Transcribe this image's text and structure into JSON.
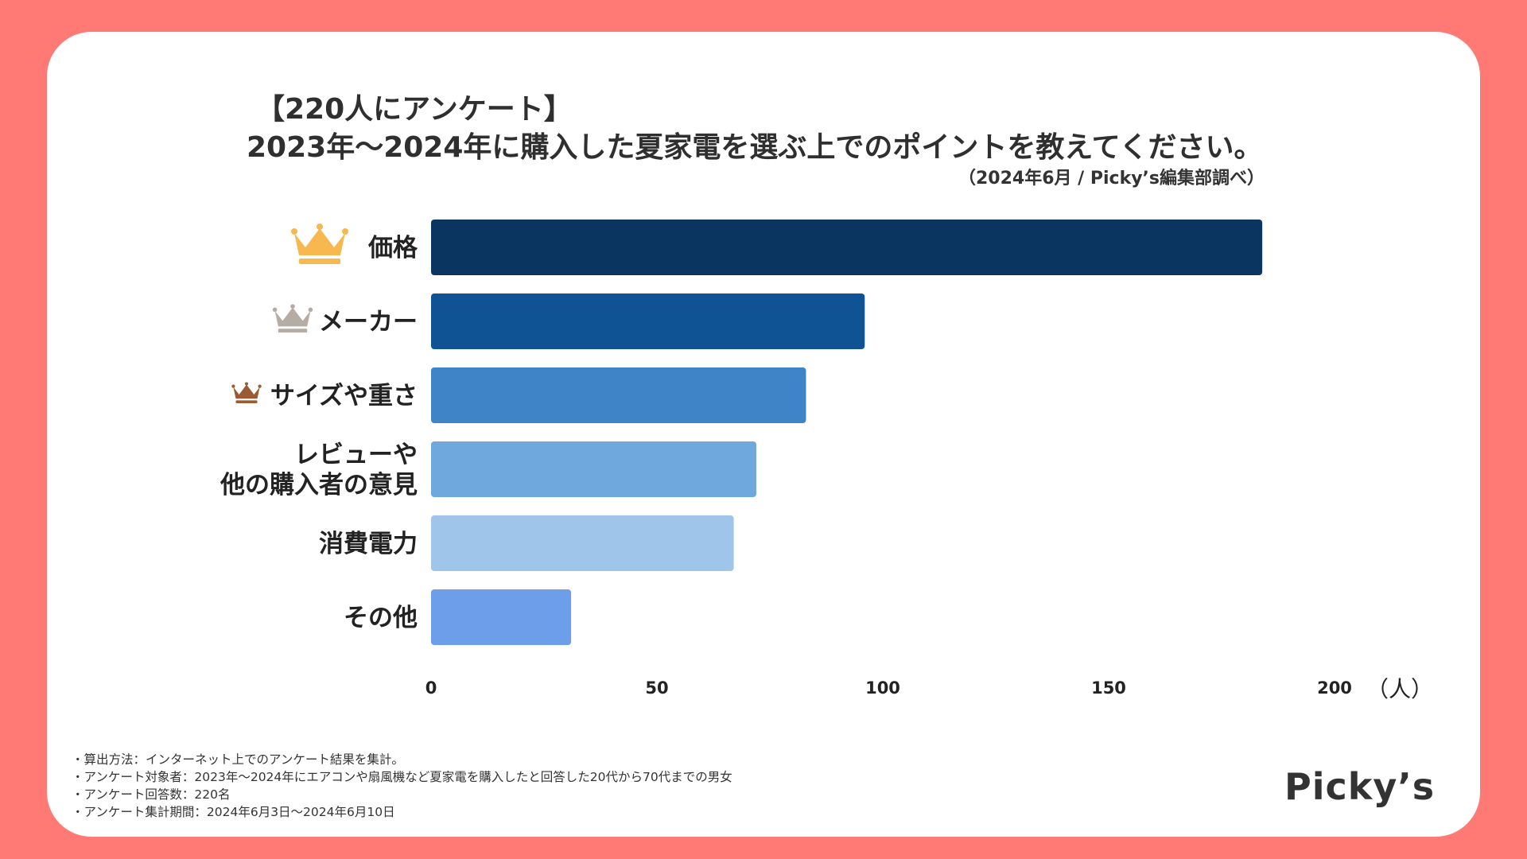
{
  "header": {
    "title_line1": "【220人にアンケート】",
    "title_line2": "2023年〜2024年に購入した夏家電を選ぶ上でのポイントを教えてください。",
    "source": "（2024年6月 / Picky’s編集部調べ）"
  },
  "chart_data": {
    "type": "bar",
    "orientation": "horizontal",
    "categories": [
      [
        "価格"
      ],
      [
        "メーカー"
      ],
      [
        "サイズや重さ"
      ],
      [
        "レビューや",
        "他の購入者の意見"
      ],
      [
        "消費電力"
      ],
      [
        "その他"
      ]
    ],
    "values": [
      184,
      96,
      83,
      72,
      67,
      31
    ],
    "xticks": [
      "0",
      "50",
      "100",
      "150",
      "200"
    ],
    "xlim": [
      0,
      200
    ],
    "unit": "（人）",
    "colors": [
      "#0a3561",
      "#0f5394",
      "#3f84c7",
      "#6ea8dc",
      "#9fc6ea",
      "#6d9eea"
    ],
    "rank_icons": [
      "crown-gold-icon",
      "crown-silver-icon",
      "crown-bronze-icon"
    ],
    "rank_colors": [
      "#f7b94f",
      "#b5aca4",
      "#9a5a34"
    ]
  },
  "notes": [
    "・算出方法：インターネット上でのアンケート結果を集計。",
    "・アンケート対象者：2023年〜2024年にエアコンや扇風機など夏家電を購入したと回答した20代から70代までの男女",
    "・アンケート回答数：220名",
    "・アンケート集計期間：2024年6月3日〜2024年6月10日"
  ],
  "brand": "Picky’s"
}
